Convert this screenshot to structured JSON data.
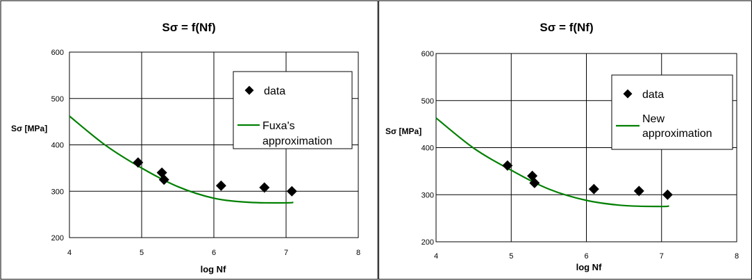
{
  "chart_data": [
    {
      "type": "scatter",
      "title": "Sσ = f(Nf)",
      "xlabel": "log Nf",
      "ylabel": "Sσ [MPa]",
      "xlim": [
        4,
        8
      ],
      "ylim": [
        200,
        600
      ],
      "xticks": [
        "4",
        "5",
        "6",
        "7",
        "8"
      ],
      "yticks": [
        "200",
        "300",
        "400",
        "500",
        "600"
      ],
      "grid": true,
      "legend_position": "top-right",
      "series": [
        {
          "name": "data",
          "kind": "marker",
          "marker": "diamond",
          "color": "#000000",
          "x": [
            4.95,
            5.28,
            5.31,
            6.1,
            6.7,
            7.08
          ],
          "y": [
            362,
            340,
            325,
            312,
            308,
            300
          ]
        },
        {
          "name": "Fuxa's approximation",
          "legend_lines": [
            "Fuxa's",
            "approximation"
          ],
          "kind": "line",
          "color": "#008000",
          "x": [
            4.0,
            4.5,
            5.0,
            5.5,
            6.0,
            6.5,
            7.0,
            7.1
          ],
          "y": [
            462,
            399,
            350,
            310,
            285,
            276,
            275,
            276
          ]
        }
      ]
    },
    {
      "type": "scatter",
      "title": "Sσ = f(Nf)",
      "xlabel": "log Nf",
      "ylabel": "Sσ [MPa]",
      "xlim": [
        4,
        8
      ],
      "ylim": [
        200,
        600
      ],
      "xticks": [
        "4",
        "5",
        "6",
        "7",
        "8"
      ],
      "yticks": [
        "200",
        "300",
        "400",
        "500",
        "600"
      ],
      "grid": true,
      "legend_position": "top-right",
      "series": [
        {
          "name": "data",
          "kind": "marker",
          "marker": "diamond",
          "color": "#000000",
          "x": [
            4.95,
            5.28,
            5.31,
            6.1,
            6.7,
            7.08
          ],
          "y": [
            362,
            340,
            325,
            312,
            308,
            300
          ]
        },
        {
          "name": "New approximation",
          "legend_lines": [
            "New",
            "approximation"
          ],
          "kind": "line",
          "color": "#008000",
          "x": [
            4.0,
            4.5,
            5.0,
            5.5,
            6.0,
            6.5,
            7.0,
            7.1
          ],
          "y": [
            463,
            399,
            352,
            312,
            288,
            277,
            275,
            276
          ]
        }
      ]
    }
  ]
}
